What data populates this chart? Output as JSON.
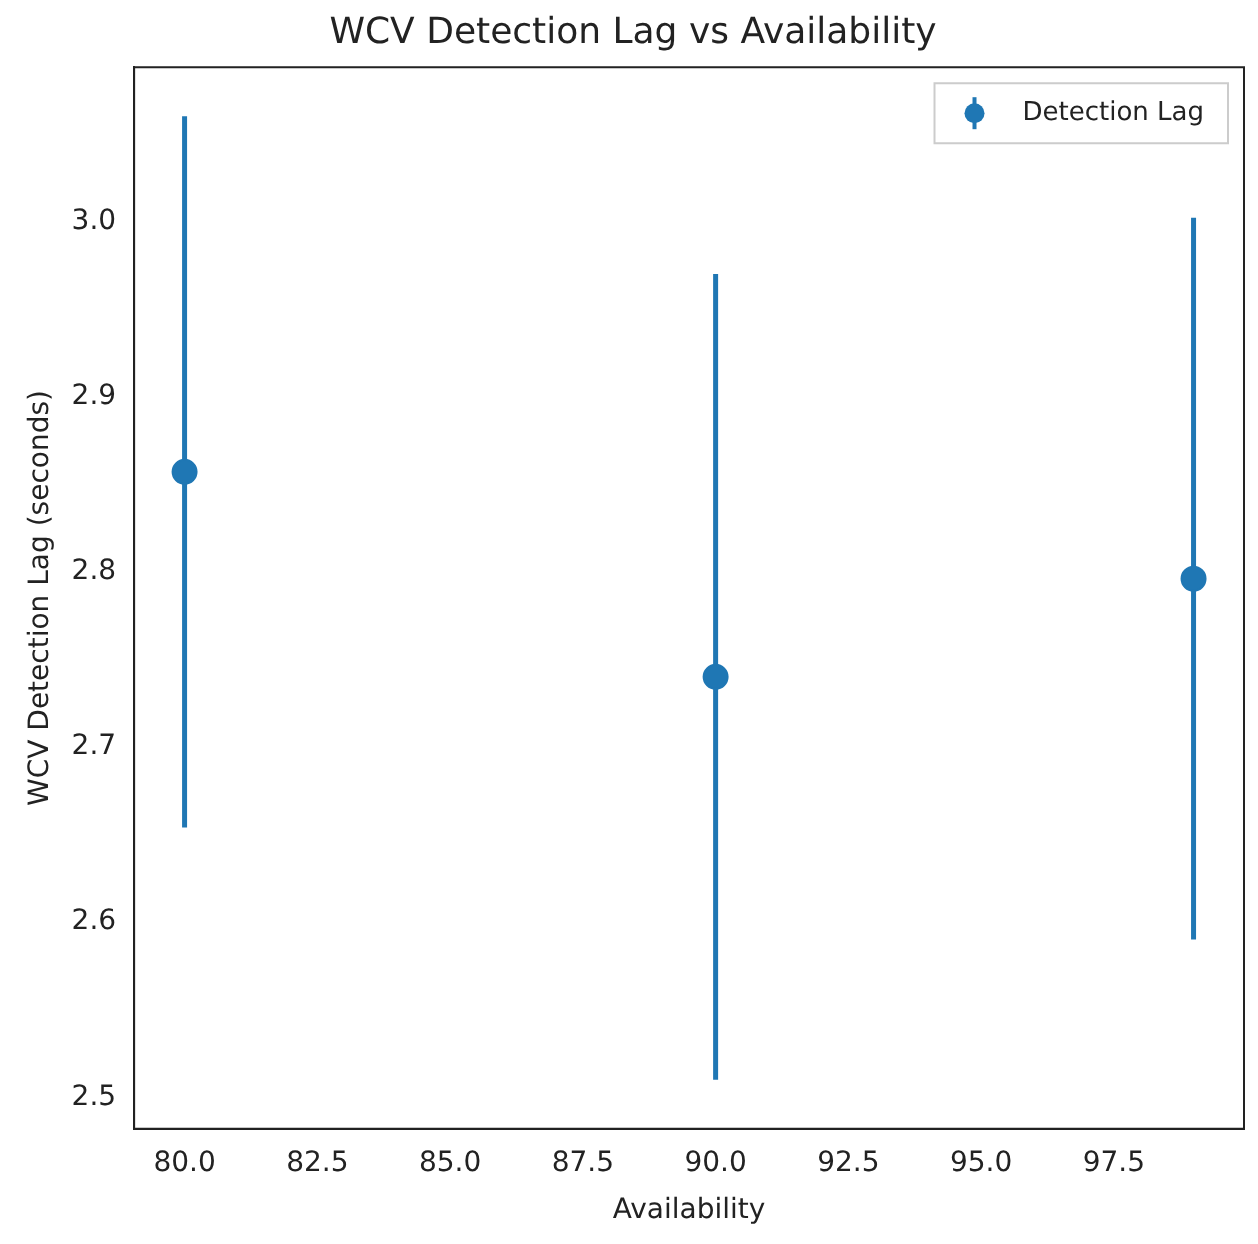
{
  "chart_data": {
    "type": "scatter",
    "title": "WCV Detection Lag vs Availability",
    "xlabel": "Availability",
    "ylabel": "WCV Detection Lag (seconds)",
    "x": [
      80,
      90,
      99
    ],
    "series": [
      {
        "name": "Detection Lag",
        "color": "#1f77b4",
        "values": [
          2.857,
          2.74,
          2.796
        ],
        "errors": [
          0.203,
          0.23,
          0.206
        ]
      }
    ],
    "xlim": [
      79.05,
      99.95
    ],
    "xticks": [
      {
        "value": 80,
        "label": "80.0"
      },
      {
        "value": 82.5,
        "label": "82.5"
      },
      {
        "value": 85,
        "label": "85.0"
      },
      {
        "value": 87.5,
        "label": "87.5"
      },
      {
        "value": 90,
        "label": "90.0"
      },
      {
        "value": 92.5,
        "label": "92.5"
      },
      {
        "value": 95,
        "label": "95.0"
      },
      {
        "value": 97.5,
        "label": "97.5"
      }
    ],
    "ylim": [
      2.482,
      3.088
    ],
    "yticks": [
      {
        "value": 2.5,
        "label": "2.5"
      },
      {
        "value": 2.6,
        "label": "2.6"
      },
      {
        "value": 2.7,
        "label": "2.7"
      },
      {
        "value": 2.8,
        "label": "2.8"
      },
      {
        "value": 2.9,
        "label": "2.9"
      },
      {
        "value": 3.0,
        "label": "3.0"
      }
    ],
    "legend": "top right",
    "marker": "circle",
    "grid": false
  }
}
